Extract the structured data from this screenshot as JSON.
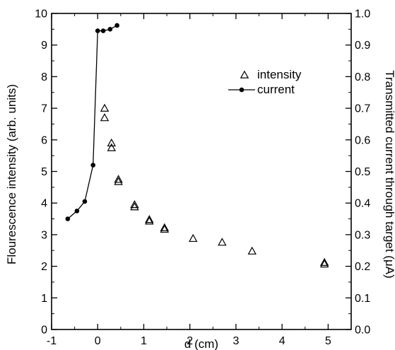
{
  "chart_data": {
    "type": "scatter",
    "xlabel": "d (cm)",
    "ylabel_left": "Flourescence intensity (arb. units)",
    "ylabel_right": "Transmitted current through target (μA)",
    "xlim": [
      -1,
      5.5
    ],
    "ylim_left": [
      0,
      10
    ],
    "ylim_right": [
      0.0,
      1.0
    ],
    "x_ticks": [
      -1,
      0,
      1,
      2,
      3,
      4,
      5
    ],
    "x_tick_labels": [
      "-1",
      "0",
      "1",
      "2",
      "3",
      "4",
      "5"
    ],
    "y_left_ticks": [
      0,
      1,
      2,
      3,
      4,
      5,
      6,
      7,
      8,
      9,
      10
    ],
    "y_left_tick_labels": [
      "0",
      "1",
      "2",
      "3",
      "4",
      "5",
      "6",
      "7",
      "8",
      "9",
      "10"
    ],
    "y_right_ticks": [
      0.0,
      0.1,
      0.2,
      0.3,
      0.4,
      0.5,
      0.6,
      0.7,
      0.8,
      0.9,
      1.0
    ],
    "y_right_tick_labels": [
      "0.0",
      "0.1",
      "0.2",
      "0.3",
      "0.4",
      "0.5",
      "0.6",
      "0.7",
      "0.8",
      "0.9",
      "1.0"
    ],
    "grid": false,
    "legend_position": "upper-right",
    "series": [
      {
        "name": "intensity",
        "marker": "open-triangle",
        "axis": "left",
        "x": [
          0.15,
          0.15,
          0.3,
          0.3,
          0.45,
          0.45,
          0.8,
          0.8,
          1.12,
          1.12,
          1.45,
          1.45,
          2.07,
          2.7,
          3.35,
          4.92,
          4.92
        ],
        "y": [
          7.0,
          6.7,
          5.9,
          5.75,
          4.75,
          4.68,
          3.95,
          3.88,
          3.48,
          3.43,
          3.22,
          3.17,
          2.88,
          2.76,
          2.48,
          2.12,
          2.07
        ]
      },
      {
        "name": "current",
        "marker": "filled-circle-line",
        "axis": "right",
        "x": [
          -0.65,
          -0.45,
          -0.28,
          -0.1,
          0.0,
          0.12,
          0.27,
          0.42
        ],
        "y": [
          0.35,
          0.375,
          0.405,
          0.52,
          0.945,
          0.945,
          0.95,
          0.962
        ]
      }
    ]
  }
}
